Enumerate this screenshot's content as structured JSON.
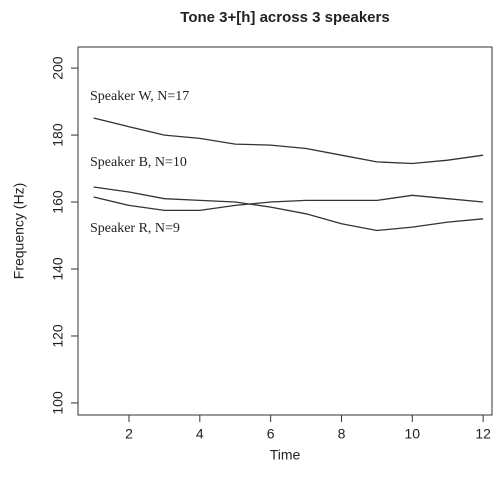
{
  "chart_data": {
    "type": "line",
    "title": "Tone 3+[h] across 3 speakers",
    "x_label": "Time",
    "y_label": "Frequency (Hz)",
    "x": [
      1,
      2,
      3,
      4,
      5,
      6,
      7,
      8,
      9,
      10,
      11,
      12
    ],
    "series": [
      {
        "name": "Speaker W, N=17",
        "color": "#333333",
        "values": [
          185.1,
          182.5,
          180,
          179,
          177.3,
          177,
          176,
          174,
          172,
          171.5,
          172.5,
          174
        ]
      },
      {
        "name": "Speaker B, N=10",
        "color": "#333333",
        "values": [
          164.5,
          163,
          161,
          160.5,
          160,
          158.5,
          156.5,
          153.5,
          151.5,
          152.5,
          154,
          155
        ]
      },
      {
        "name": "Speaker R, N=9",
        "color": "#333333",
        "values": [
          161.5,
          159,
          157.5,
          157.5,
          159,
          160,
          160.5,
          160.5,
          160.5,
          162,
          161,
          160
        ]
      }
    ],
    "xlim": [
      0.56,
      12.25
    ],
    "ylim": [
      96.4,
      206.3
    ],
    "xticks": [
      2,
      4,
      6,
      8,
      10,
      12
    ],
    "yticks": [
      100,
      120,
      140,
      160,
      180,
      200
    ],
    "grid": false
  }
}
